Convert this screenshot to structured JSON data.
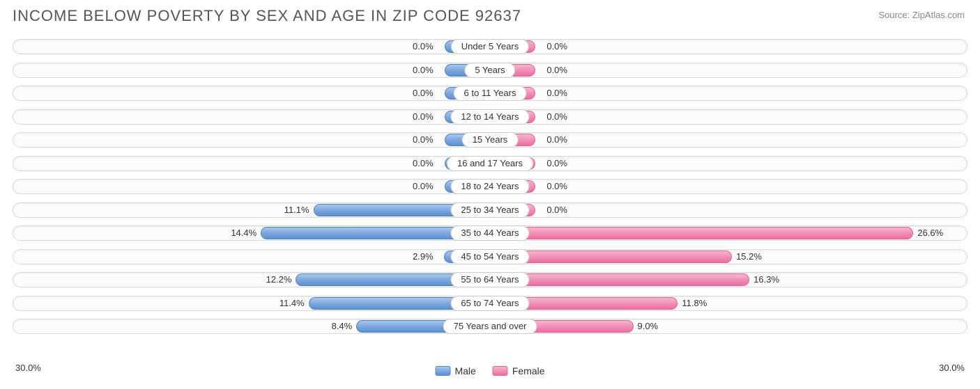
{
  "title": "INCOME BELOW POVERTY BY SEX AND AGE IN ZIP CODE 92637",
  "source": "Source: ZipAtlas.com",
  "axis_max": 30.0,
  "axis_min_label": "30.0%",
  "axis_max_label": "30.0%",
  "legend": {
    "male": "Male",
    "female": "Female"
  },
  "colors": {
    "male_top": "#a9c7ee",
    "male_mid": "#7ea8dd",
    "male_bot": "#5b8fd4",
    "male_border": "#4f83c7",
    "female_top": "#f6b8cd",
    "female_mid": "#f191b4",
    "female_bot": "#ec6f9e",
    "female_border": "#e55f93",
    "track_bg": "#fbfbfb",
    "track_border": "#d9d9d9",
    "title_color": "#555555",
    "source_color": "#888888",
    "label_pill_bg": "#ffffff",
    "label_pill_border": "#cccccc"
  },
  "min_bar_pct": 9.5,
  "pill_half_pct": 11,
  "rows": [
    {
      "label": "Under 5 Years",
      "male": 0.0,
      "female": 0.0,
      "male_label": "0.0%",
      "female_label": "0.0%"
    },
    {
      "label": "5 Years",
      "male": 0.0,
      "female": 0.0,
      "male_label": "0.0%",
      "female_label": "0.0%"
    },
    {
      "label": "6 to 11 Years",
      "male": 0.0,
      "female": 0.0,
      "male_label": "0.0%",
      "female_label": "0.0%"
    },
    {
      "label": "12 to 14 Years",
      "male": 0.0,
      "female": 0.0,
      "male_label": "0.0%",
      "female_label": "0.0%"
    },
    {
      "label": "15 Years",
      "male": 0.0,
      "female": 0.0,
      "male_label": "0.0%",
      "female_label": "0.0%"
    },
    {
      "label": "16 and 17 Years",
      "male": 0.0,
      "female": 0.0,
      "male_label": "0.0%",
      "female_label": "0.0%"
    },
    {
      "label": "18 to 24 Years",
      "male": 0.0,
      "female": 0.0,
      "male_label": "0.0%",
      "female_label": "0.0%"
    },
    {
      "label": "25 to 34 Years",
      "male": 11.1,
      "female": 0.0,
      "male_label": "11.1%",
      "female_label": "0.0%"
    },
    {
      "label": "35 to 44 Years",
      "male": 14.4,
      "female": 26.6,
      "male_label": "14.4%",
      "female_label": "26.6%"
    },
    {
      "label": "45 to 54 Years",
      "male": 2.9,
      "female": 15.2,
      "male_label": "2.9%",
      "female_label": "15.2%"
    },
    {
      "label": "55 to 64 Years",
      "male": 12.2,
      "female": 16.3,
      "male_label": "12.2%",
      "female_label": "16.3%"
    },
    {
      "label": "65 to 74 Years",
      "male": 11.4,
      "female": 11.8,
      "male_label": "11.4%",
      "female_label": "11.8%"
    },
    {
      "label": "75 Years and over",
      "male": 8.4,
      "female": 9.0,
      "male_label": "8.4%",
      "female_label": "9.0%"
    }
  ]
}
